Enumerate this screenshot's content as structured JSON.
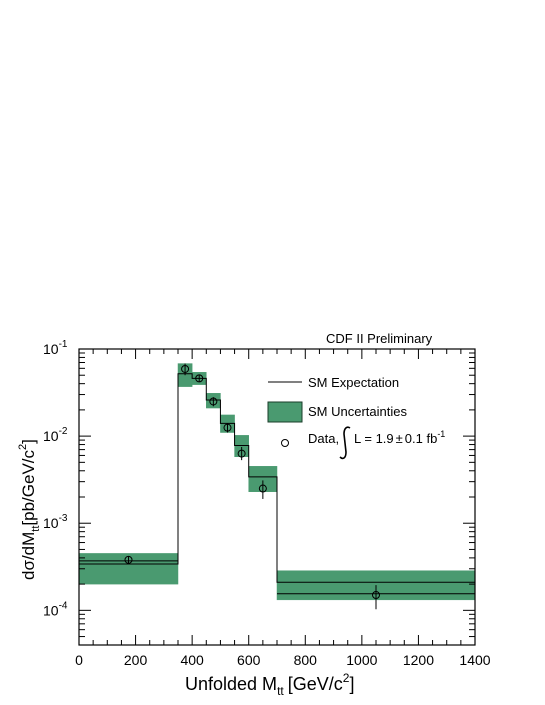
{
  "chart_data": {
    "type": "histogram",
    "header": "CDF II Preliminary",
    "xlabel": {
      "main": "Unfolded M",
      "sub": "tt",
      "unit": "[GeV/c",
      "sup": "2",
      "close": "]"
    },
    "ylabel": {
      "main": "dσ/dM",
      "sub": "tt",
      "unit": "[pb/GeV/c",
      "sup": "2",
      "close": "]"
    },
    "xlim": [
      0,
      1400
    ],
    "ylim": [
      4e-05,
      0.1
    ],
    "yscale": "log",
    "xticks": [
      0,
      200,
      400,
      600,
      800,
      1000,
      1200,
      1400
    ],
    "yticks": [
      {
        "value": 0.0001,
        "base": "10",
        "exp": "-4"
      },
      {
        "value": 0.001,
        "base": "10",
        "exp": "-3"
      },
      {
        "value": 0.01,
        "base": "10",
        "exp": "-2"
      },
      {
        "value": 0.1,
        "base": "10",
        "exp": "-1"
      }
    ],
    "bins": [
      {
        "lo": 0,
        "hi": 350,
        "sm": 0.00034,
        "unc_lo": 0.0002,
        "unc_hi": 0.00045,
        "data": 0.00038,
        "data_x": 175,
        "err_lo": 0.000345,
        "err_hi": 0.00042
      },
      {
        "lo": 350,
        "hi": 400,
        "sm": 0.052,
        "unc_lo": 0.037,
        "unc_hi": 0.068,
        "data": 0.059,
        "data_x": 375,
        "err_lo": 0.05,
        "err_hi": 0.068
      },
      {
        "lo": 400,
        "hi": 450,
        "sm": 0.046,
        "unc_lo": 0.039,
        "unc_hi": 0.054,
        "data": 0.046,
        "data_x": 425,
        "err_lo": 0.042,
        "err_hi": 0.05
      },
      {
        "lo": 450,
        "hi": 500,
        "sm": 0.026,
        "unc_lo": 0.021,
        "unc_hi": 0.031,
        "data": 0.025,
        "data_x": 475,
        "err_lo": 0.022,
        "err_hi": 0.028
      },
      {
        "lo": 500,
        "hi": 550,
        "sm": 0.014,
        "unc_lo": 0.011,
        "unc_hi": 0.0175,
        "data": 0.0125,
        "data_x": 525,
        "err_lo": 0.011,
        "err_hi": 0.014
      },
      {
        "lo": 550,
        "hi": 600,
        "sm": 0.0078,
        "unc_lo": 0.0058,
        "unc_hi": 0.0102,
        "data": 0.0063,
        "data_x": 575,
        "err_lo": 0.0053,
        "err_hi": 0.0075
      },
      {
        "lo": 600,
        "hi": 700,
        "sm": 0.0034,
        "unc_lo": 0.0023,
        "unc_hi": 0.0045,
        "data": 0.0025,
        "data_x": 650,
        "err_lo": 0.0019,
        "err_hi": 0.0031
      },
      {
        "lo": 700,
        "hi": 1400,
        "sm": 0.00021,
        "unc_lo": 0.000132,
        "unc_hi": 0.000285,
        "data": 0.00015,
        "data_x": 1050,
        "err_lo": 0.000103,
        "err_hi": 0.000195
      }
    ],
    "inner_lines": [
      {
        "bin": 0,
        "value": 0.00037
      },
      {
        "bin": 7,
        "value": 0.000155
      }
    ],
    "legend": {
      "sm_expectation": "SM Expectation",
      "sm_uncertainties": "SM Uncertainties",
      "data_prefix": "Data,",
      "data_lumi": "L = 1.9",
      "pm": "±",
      "data_unc": "0.1 fb",
      "data_sup": "-1"
    },
    "colors": {
      "band": "#4a9a70",
      "band_stroke": "#1a3d2a",
      "line": "#000000",
      "frame": "#000000"
    }
  }
}
